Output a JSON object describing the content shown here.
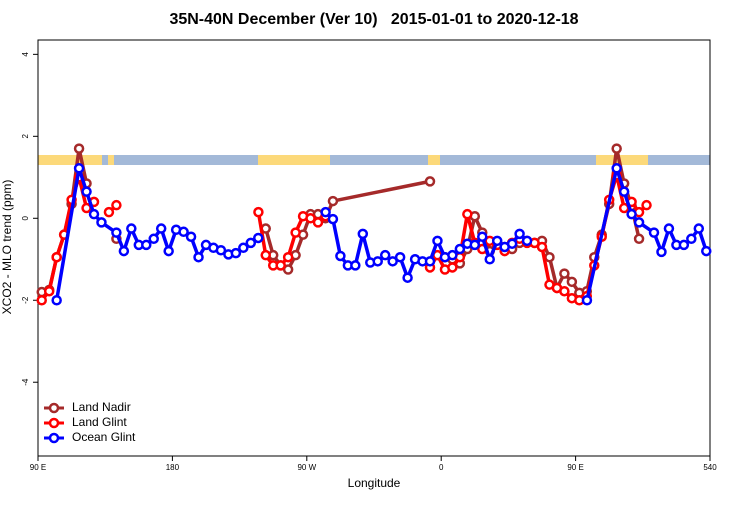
{
  "chart_data": {
    "type": "line",
    "title": "35N-40N December (Ver 10)   2015-01-01 to 2020-12-18",
    "x_label": "Longitude",
    "y_label": "XCO2 - MLO trend (ppm)",
    "xlim": [
      90,
      540
    ],
    "ylim": [
      -5.8,
      4.35
    ],
    "xticks": [
      {
        "value": 90,
        "label": "90 E"
      },
      180,
      {
        "value": 270,
        "label": "90 W"
      },
      {
        "value": 360,
        "label": "0"
      },
      {
        "value": 450,
        "label": "90 E"
      },
      540
    ],
    "yticks": [
      -4,
      -2,
      0,
      2,
      4
    ],
    "legend": "bottomleft",
    "series": [
      {
        "name": "Land Nadir",
        "color": "#a52a2a",
        "x": [
          92.5,
          97.5,
          102.5,
          107.5,
          112.5,
          117.5,
          122.5,
          127.5,
          132.5,
          137.5,
          142.5,
          237.5,
          242.5,
          247.5,
          252.5,
          257.5,
          262.5,
          267.5,
          272.5,
          277.5,
          282.5,
          287.5,
          352.5,
          357.5,
          362.5,
          367.5,
          372.5,
          377.5,
          382.5,
          387.5,
          392.5,
          397.5,
          402.5,
          407.5,
          412.5,
          417.5,
          422.5,
          427.5,
          432.5,
          437.5,
          442.5,
          447.5,
          452.5,
          457.5,
          462.5,
          467.5,
          472.5,
          477.5,
          482.5,
          487.5,
          492.5
        ],
        "values": [
          -1.8,
          -1.75,
          -0.95,
          -0.4,
          0.35,
          1.7,
          0.85,
          null,
          null,
          null,
          -0.5,
          null,
          -0.25,
          -0.9,
          -1.15,
          -1.25,
          -0.9,
          -0.4,
          0.1,
          0.1,
          0.0,
          0.42,
          0.9,
          null,
          -0.95,
          -1.0,
          -1.1,
          -0.75,
          0.05,
          -0.35,
          -0.8,
          -0.6,
          -0.7,
          -0.75,
          -0.6,
          -0.55,
          -0.6,
          -0.55,
          -0.95,
          -1.7,
          -1.35,
          -1.55,
          -1.82,
          -1.78,
          -0.95,
          -0.4,
          0.35,
          1.7,
          0.85,
          0.3,
          -0.5
        ]
      },
      {
        "name": "Land Glint",
        "color": "#ff0000",
        "x": [
          92.5,
          97.5,
          102.5,
          107.5,
          112.5,
          117.5,
          122.5,
          127.5,
          132.5,
          137.5,
          142.5,
          237.5,
          237.6,
          242.5,
          247.5,
          252.5,
          257.5,
          262.5,
          267.5,
          272.5,
          277.5,
          282.5,
          347.5,
          352.5,
          357.5,
          362.5,
          367.5,
          372.5,
          377.5,
          382.5,
          387.5,
          392.5,
          397.5,
          402.5,
          407.5,
          412.5,
          417.5,
          422.5,
          427.5,
          432.5,
          437.5,
          442.5,
          447.5,
          452.5,
          457.5,
          462.5,
          467.5,
          472.5,
          477.5,
          482.5,
          487.5,
          492.5,
          497.5
        ],
        "values": [
          -2.0,
          -1.78,
          -0.95,
          -0.4,
          0.45,
          1.0,
          0.25,
          0.4,
          null,
          0.15,
          0.32,
          null,
          0.15,
          -0.9,
          -1.15,
          -1.15,
          -0.95,
          -0.35,
          0.05,
          0.0,
          -0.1,
          0.05,
          null,
          -1.2,
          -0.9,
          -1.25,
          -1.2,
          -0.95,
          0.1,
          -0.6,
          -0.75,
          -0.55,
          -0.65,
          -0.8,
          -0.6,
          -0.5,
          -0.6,
          -0.6,
          -0.7,
          -1.62,
          -1.7,
          -1.78,
          -1.95,
          -2.0,
          -1.9,
          -1.15,
          -0.45,
          0.45,
          1.05,
          0.25,
          0.4,
          0.15,
          0.32
        ]
      },
      {
        "name": "Ocean Glint",
        "color": "#0000ff",
        "x": [
          102.5,
          117.5,
          122.5,
          127.5,
          132.5,
          142.5,
          147.5,
          152.5,
          157.5,
          162.5,
          167.5,
          172.5,
          177.5,
          182.5,
          187.5,
          192.5,
          197.5,
          202.5,
          207.5,
          212.5,
          217.5,
          222.5,
          227.5,
          232.5,
          237.5,
          282.5,
          282.6,
          287.5,
          292.5,
          297.5,
          302.5,
          307.5,
          312.5,
          317.5,
          322.5,
          327.5,
          332.5,
          337.5,
          342.5,
          347.5,
          352.5,
          357.5,
          362.5,
          367.5,
          372.5,
          377.5,
          382.5,
          387.5,
          392.5,
          397.5,
          402.5,
          407.5,
          412.5,
          417.5,
          457.5,
          457.6,
          477.5,
          482.5,
          487.5,
          492.5,
          502.5,
          507.5,
          512.5,
          517.5,
          522.5,
          527.5,
          532.5,
          537.5
        ],
        "values": [
          -2.0,
          1.22,
          0.65,
          0.1,
          -0.1,
          -0.35,
          -0.8,
          -0.25,
          -0.65,
          -0.65,
          -0.5,
          -0.25,
          -0.8,
          -0.28,
          -0.33,
          -0.45,
          -0.95,
          -0.65,
          -0.72,
          -0.78,
          -0.88,
          -0.85,
          -0.72,
          -0.6,
          -0.48,
          null,
          0.15,
          -0.02,
          -0.92,
          -1.15,
          -1.15,
          -0.38,
          -1.08,
          -1.05,
          -0.9,
          -1.05,
          -0.95,
          -1.45,
          -1.0,
          -1.05,
          -1.05,
          -0.55,
          -0.95,
          -0.9,
          -0.75,
          -0.62,
          -0.65,
          -0.45,
          -1.0,
          -0.55,
          -0.7,
          -0.62,
          -0.38,
          -0.55,
          null,
          -2.0,
          1.22,
          0.65,
          0.1,
          -0.1,
          -0.35,
          -0.82,
          -0.25,
          -0.65,
          -0.65,
          -0.5,
          -0.25,
          -0.8
        ]
      }
    ]
  }
}
